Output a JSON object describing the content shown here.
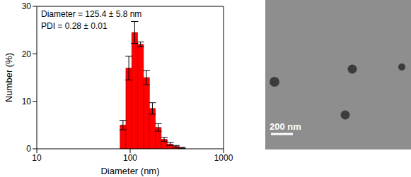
{
  "chart_data": {
    "type": "histogram",
    "bins": [
      78,
      90,
      104,
      120,
      139,
      161,
      186,
      215,
      249,
      288,
      334,
      387
    ],
    "counts": [
      5,
      17,
      24.5,
      22,
      15,
      8.5,
      4.5,
      2,
      1,
      0.5,
      0.2
    ],
    "errors": [
      1,
      2.5,
      2.3,
      0.5,
      1.5,
      1.2,
      0.8,
      0.4,
      0.3,
      0.2,
      0.1
    ],
    "color": "#ff0000",
    "log": "x",
    "xlim": [
      10,
      1000
    ],
    "xticks": [
      10,
      100,
      1000
    ],
    "ylim": [
      0,
      30
    ],
    "yticks": [
      0,
      10,
      20,
      30
    ],
    "x_label": "Diameter (nm)",
    "y_label": "Number (%)",
    "annotations": [
      "Diameter = 125.4 ± 5.8 nm",
      "PDI = 0.28 ± 0.01"
    ]
  },
  "micrograph": {
    "scale_bar_label": "200 nm"
  }
}
